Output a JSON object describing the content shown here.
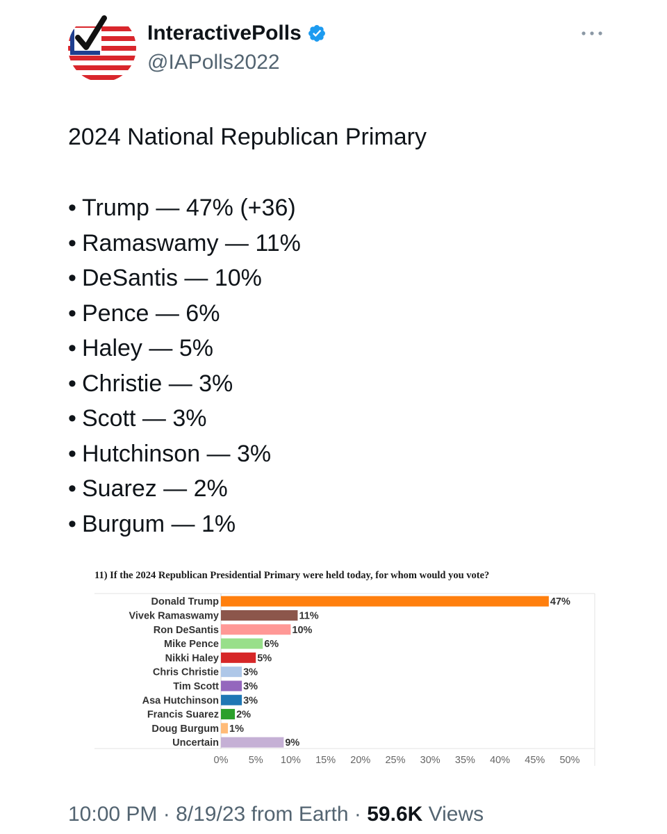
{
  "account": {
    "display_name": "InteractivePolls",
    "handle": "@IAPolls2022",
    "verified_color": "#1d9bf0"
  },
  "tweet": {
    "title": "2024 National Republican Primary",
    "bullet": "•",
    "results": [
      {
        "text": "Trump — 47% (+36)"
      },
      {
        "text": "Ramaswamy — 11%"
      },
      {
        "text": "DeSantis — 10%"
      },
      {
        "text": "Pence — 6%"
      },
      {
        "text": "Haley — 5%"
      },
      {
        "text": "Christie — 3%"
      },
      {
        "text": "Scott — 3%"
      },
      {
        "text": "Hutchinson — 3%"
      },
      {
        "text": "Suarez — 2%"
      },
      {
        "text": "Burgum — 1%"
      }
    ]
  },
  "chart_data": {
    "type": "bar",
    "orientation": "horizontal",
    "title": "11) If the 2024 Republican Presidential Primary were held today, for whom would you vote?",
    "categories": [
      "Donald Trump",
      "Vivek Ramaswamy",
      "Ron DeSantis",
      "Mike Pence",
      "Nikki Haley",
      "Chris Christie",
      "Tim Scott",
      "Asa Hutchinson",
      "Francis Suarez",
      "Doug Burgum",
      "Uncertain"
    ],
    "values": [
      47,
      11,
      10,
      6,
      5,
      3,
      3,
      3,
      2,
      1,
      9
    ],
    "value_labels": [
      "47%",
      "11%",
      "10%",
      "6%",
      "5%",
      "3%",
      "3%",
      "3%",
      "2%",
      "1%",
      "9%"
    ],
    "colors": [
      "#ff7f0e",
      "#8c564b",
      "#ff9896",
      "#98df8a",
      "#d62728",
      "#aec7e8",
      "#9467bd",
      "#1f77b4",
      "#2ca02c",
      "#ffbb78",
      "#c5b0d5"
    ],
    "xlim": [
      0,
      50
    ],
    "xticks": [
      0,
      5,
      10,
      15,
      20,
      25,
      30,
      35,
      40,
      45,
      50
    ],
    "xtick_labels": [
      "0%",
      "5%",
      "10%",
      "15%",
      "20%",
      "25%",
      "30%",
      "35%",
      "40%",
      "45%",
      "50%"
    ],
    "xlabel": "",
    "ylabel": "",
    "grid": false
  },
  "footer": {
    "time": "10:00 PM",
    "separator": " · ",
    "date": "8/19/23",
    "source": "from Earth",
    "views_count": "59.6K",
    "views_label": "Views"
  }
}
